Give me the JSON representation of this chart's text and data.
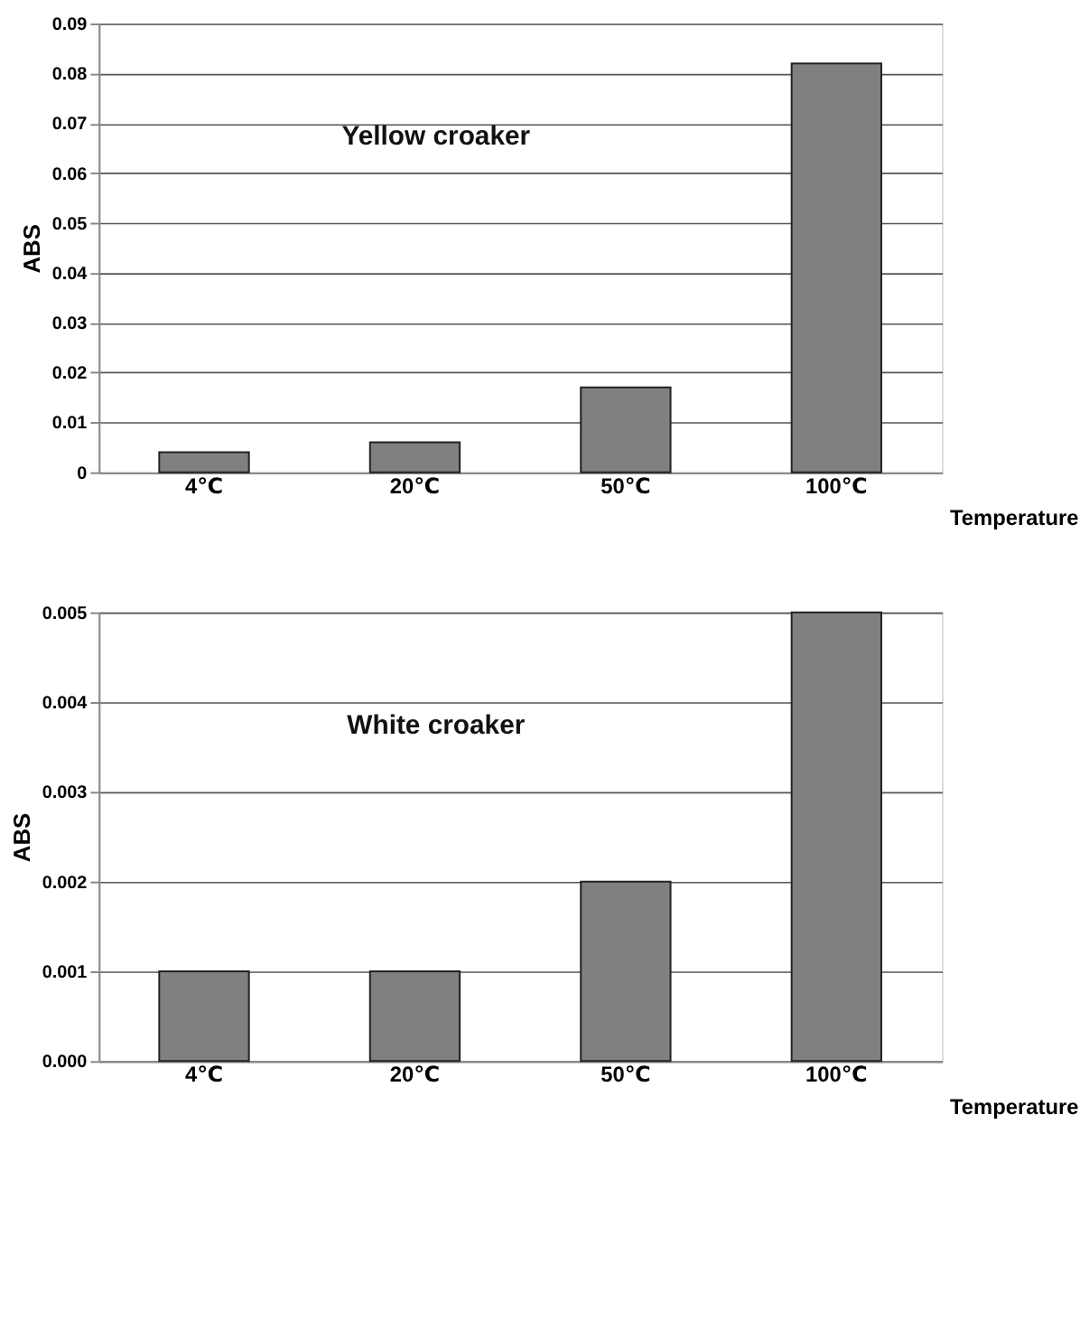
{
  "chart_data": [
    {
      "type": "bar",
      "title": "Yellow croaker",
      "xlabel": "Temperature",
      "ylabel": "ABS",
      "categories": [
        "4℃",
        "20℃",
        "50℃",
        "100℃"
      ],
      "values": [
        0.004,
        0.006,
        0.017,
        0.082
      ],
      "color": "#808080",
      "ylim": [
        0,
        0.09
      ],
      "yticks": [
        0,
        0.01,
        0.02,
        0.03,
        0.04,
        0.05,
        0.06,
        0.07,
        0.08,
        0.09
      ],
      "grid": "y"
    },
    {
      "type": "bar",
      "title": "White croaker",
      "xlabel": "Temperature",
      "ylabel": "ABS",
      "categories": [
        "4℃",
        "20℃",
        "50℃",
        "100℃"
      ],
      "values": [
        0.001,
        0.001,
        0.002,
        0.005
      ],
      "color": "#808080",
      "ylim": [
        0,
        0.005
      ],
      "yticks": [
        {
          "value": 0,
          "label": "0.000"
        },
        {
          "value": 0.001,
          "label": "0.001"
        },
        {
          "value": 0.002,
          "label": "0.002"
        },
        {
          "value": 0.003,
          "label": "0.003"
        },
        {
          "value": 0.004,
          "label": "0.004"
        },
        {
          "value": 0.005,
          "label": "0.005"
        }
      ],
      "grid": "y"
    }
  ]
}
